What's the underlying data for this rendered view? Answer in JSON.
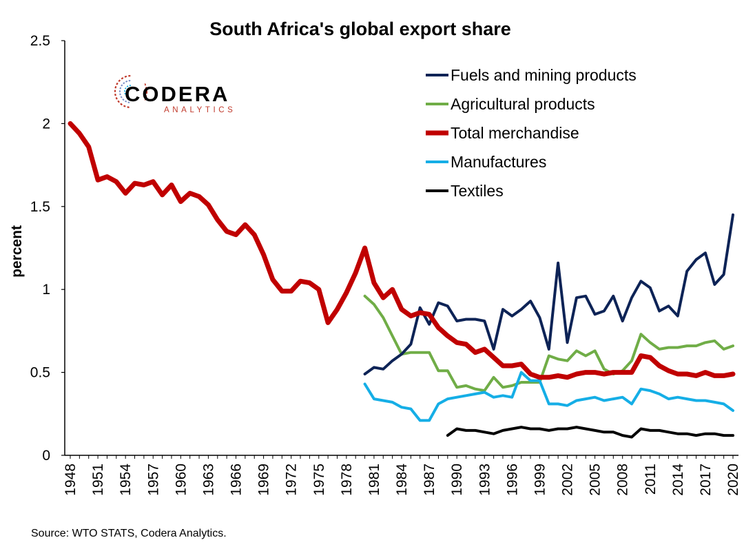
{
  "chart_data": {
    "type": "line",
    "title": "South Africa's global export share",
    "ylabel": "percent",
    "xlabel": "",
    "ylim": [
      0,
      2.5
    ],
    "yticks": [
      0,
      0.5,
      1,
      1.5,
      2,
      2.5
    ],
    "ytick_labels": [
      "0",
      "0.5",
      "1",
      "1.5",
      "2",
      "2.5"
    ],
    "xlim": [
      1948,
      2020
    ],
    "xtick_labels": [
      "1948",
      "1951",
      "1954",
      "1957",
      "1960",
      "1963",
      "1966",
      "1969",
      "1972",
      "1975",
      "1978",
      "1981",
      "1984",
      "1987",
      "1990",
      "1993",
      "1996",
      "1999",
      "2002",
      "2005",
      "2008",
      "2011",
      "2014",
      "2017",
      "2020"
    ],
    "grid": false,
    "legend_position": "top-right",
    "source": "Source: WTO STATS, Codera Analytics.",
    "logo": {
      "name": "CODERA",
      "subtitle": "ANALYTICS"
    },
    "series": [
      {
        "name": "Fuels and mining products",
        "color": "#0d2356",
        "x_start": 1980,
        "values": [
          0.49,
          0.53,
          0.52,
          0.57,
          0.61,
          0.67,
          0.89,
          0.79,
          0.92,
          0.9,
          0.81,
          0.82,
          0.82,
          0.81,
          0.64,
          0.88,
          0.84,
          0.88,
          0.93,
          0.83,
          0.64,
          1.16,
          0.68,
          0.95,
          0.96,
          0.85,
          0.87,
          0.96,
          0.81,
          0.95,
          1.05,
          1.01,
          0.87,
          0.9,
          0.84,
          1.11,
          1.18,
          1.22,
          1.03,
          1.09,
          1.45
        ]
      },
      {
        "name": "Agricultural products",
        "color": "#70ad47",
        "x_start": 1980,
        "values": [
          0.96,
          0.91,
          0.83,
          0.72,
          0.61,
          0.62,
          0.62,
          0.62,
          0.51,
          0.51,
          0.41,
          0.42,
          0.4,
          0.39,
          0.47,
          0.41,
          0.42,
          0.44,
          0.44,
          0.44,
          0.6,
          0.58,
          0.57,
          0.63,
          0.6,
          0.63,
          0.52,
          0.49,
          0.51,
          0.57,
          0.73,
          0.68,
          0.64,
          0.65,
          0.65,
          0.66,
          0.66,
          0.68,
          0.69,
          0.64,
          0.66
        ]
      },
      {
        "name": "Total merchandise",
        "color": "#c00000",
        "x_start": 1948,
        "values": [
          2.0,
          1.94,
          1.86,
          1.66,
          1.68,
          1.65,
          1.58,
          1.64,
          1.63,
          1.65,
          1.57,
          1.63,
          1.53,
          1.58,
          1.56,
          1.51,
          1.42,
          1.35,
          1.33,
          1.39,
          1.33,
          1.21,
          1.06,
          0.99,
          0.99,
          1.05,
          1.04,
          1.0,
          0.8,
          0.88,
          0.98,
          1.1,
          1.25,
          1.04,
          0.95,
          1.0,
          0.88,
          0.84,
          0.86,
          0.85,
          0.77,
          0.72,
          0.68,
          0.67,
          0.62,
          0.64,
          0.59,
          0.54,
          0.54,
          0.55,
          0.49,
          0.47,
          0.47,
          0.48,
          0.47,
          0.49,
          0.5,
          0.5,
          0.49,
          0.5,
          0.5,
          0.5,
          0.6,
          0.59,
          0.54,
          0.51,
          0.49,
          0.49,
          0.48,
          0.5,
          0.48,
          0.48,
          0.49
        ]
      },
      {
        "name": "Manufactures",
        "color": "#15aee6",
        "x_start": 1980,
        "values": [
          0.43,
          0.34,
          0.33,
          0.32,
          0.29,
          0.28,
          0.21,
          0.21,
          0.31,
          0.34,
          0.35,
          0.36,
          0.37,
          0.38,
          0.35,
          0.36,
          0.35,
          0.5,
          0.45,
          0.45,
          0.31,
          0.31,
          0.3,
          0.33,
          0.34,
          0.35,
          0.33,
          0.34,
          0.35,
          0.31,
          0.4,
          0.39,
          0.37,
          0.34,
          0.35,
          0.34,
          0.33,
          0.33,
          0.32,
          0.31,
          0.27
        ]
      },
      {
        "name": "Textiles",
        "color": "#000000",
        "x_start": 1989,
        "values": [
          0.12,
          0.16,
          0.15,
          0.15,
          0.14,
          0.13,
          0.15,
          0.16,
          0.17,
          0.16,
          0.16,
          0.15,
          0.16,
          0.16,
          0.17,
          0.16,
          0.15,
          0.14,
          0.14,
          0.12,
          0.11,
          0.16,
          0.15,
          0.15,
          0.14,
          0.13,
          0.13,
          0.12,
          0.13,
          0.13,
          0.12,
          0.12
        ]
      }
    ]
  }
}
